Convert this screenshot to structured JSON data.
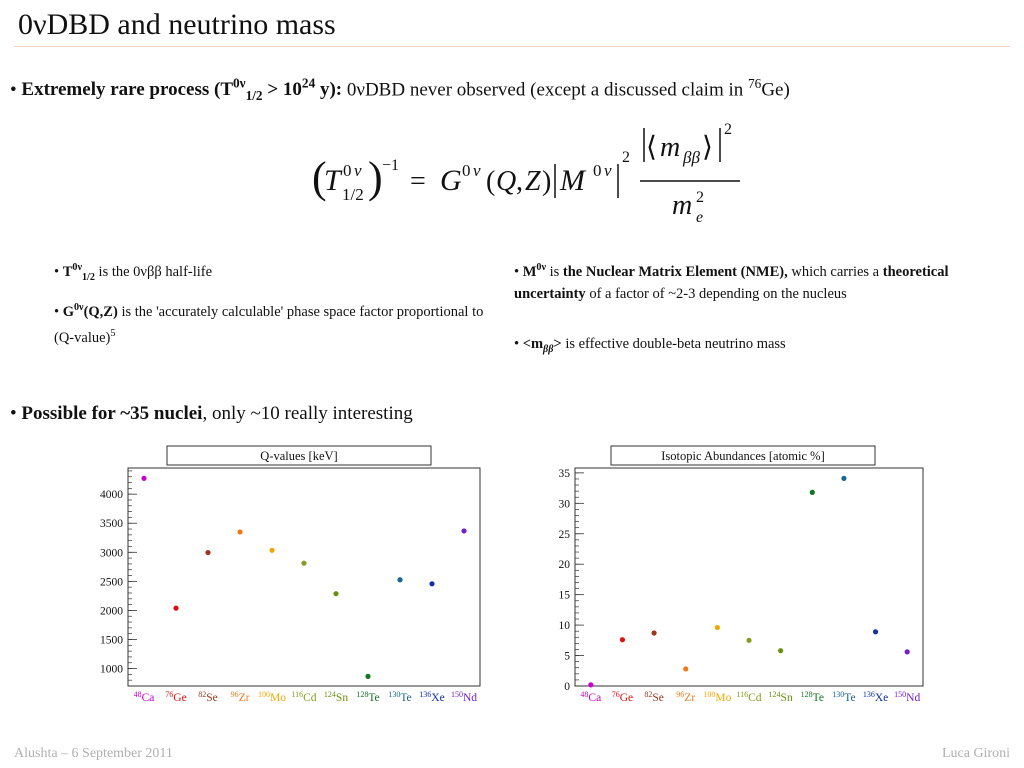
{
  "slide": {
    "title": "0νDBD and neutrino mass",
    "bullet1": {
      "lead": "Extremely rare process (T",
      "lead_sup": "0ν",
      "lead_sub": "1/2",
      "lead_mid": " > 10",
      "lead_exp": "24",
      "lead_end": " y):",
      "text": " 0νDBD never observed (except a discussed claim in ",
      "iso_sup": "76",
      "iso": "Ge)"
    },
    "notes_left": [
      {
        "bold": "T",
        "sup": "0ν",
        "sub": "1/2",
        "text": " is the 0νββ half-life"
      },
      {
        "bold": "G",
        "sup": "0ν",
        "bold2": "(Q,Z)",
        "text": " is the 'accurately calculable' phase space factor proportional to (Q-value)",
        "tail_sup": "5"
      }
    ],
    "notes_right": [
      {
        "bold": "M",
        "sup": "0ν",
        "text1": " is ",
        "bold2": "the Nuclear Matrix Element (NME),",
        "text2": " which carries a ",
        "bold3": "theoretical uncertainty",
        "text3": " of a factor of ~2-3 depending on the nucleus"
      },
      {
        "bold": "<m",
        "sub": "ββ",
        "bold_end": ">",
        "text": " is effective double-beta neutrino mass"
      }
    ],
    "bullet2": {
      "bold": "Possible for ~35 nuclei",
      "text": ", only ~10 really interesting"
    },
    "footer_left": "Alushta – 6 September 2011",
    "footer_right": "Luca Gironi"
  },
  "chart_data": [
    {
      "type": "scatter",
      "title": "Q-values [keV]",
      "xlabel": "",
      "ylabel": "",
      "ylim": [
        700,
        4450
      ],
      "yticks": [
        1000,
        1500,
        2000,
        2500,
        3000,
        3500,
        4000
      ],
      "categories": [
        {
          "mass": "48",
          "el": "Ca",
          "color": "#cc00cc"
        },
        {
          "mass": "76",
          "el": "Ge",
          "color": "#e01010"
        },
        {
          "mass": "82",
          "el": "Se",
          "color": "#a0361a"
        },
        {
          "mass": "96",
          "el": "Zr",
          "color": "#f07818"
        },
        {
          "mass": "100",
          "el": "Mo",
          "color": "#f0a800"
        },
        {
          "mass": "116",
          "el": "Cd",
          "color": "#8a9a20"
        },
        {
          "mass": "124",
          "el": "Sn",
          "color": "#689010"
        },
        {
          "mass": "128",
          "el": "Te",
          "color": "#107820"
        },
        {
          "mass": "130",
          "el": "Te",
          "color": "#186890"
        },
        {
          "mass": "136",
          "el": "Xe",
          "color": "#1030b0"
        },
        {
          "mass": "150",
          "el": "Nd",
          "color": "#7020d0"
        }
      ],
      "values": [
        4272,
        2039,
        2995,
        3350,
        3034,
        2813,
        2288,
        866,
        2528,
        2458,
        3367
      ]
    },
    {
      "type": "scatter",
      "title": "Isotopic Abundances [atomic %]",
      "xlabel": "",
      "ylabel": "",
      "ylim": [
        0,
        35.8
      ],
      "yticks": [
        0,
        5,
        10,
        15,
        20,
        25,
        30,
        35
      ],
      "categories": [
        {
          "mass": "48",
          "el": "Ca",
          "color": "#cc00cc"
        },
        {
          "mass": "76",
          "el": "Ge",
          "color": "#e01010"
        },
        {
          "mass": "82",
          "el": "Se",
          "color": "#a0361a"
        },
        {
          "mass": "96",
          "el": "Zr",
          "color": "#f07818"
        },
        {
          "mass": "100",
          "el": "Mo",
          "color": "#f0a800"
        },
        {
          "mass": "116",
          "el": "Cd",
          "color": "#8a9a20"
        },
        {
          "mass": "124",
          "el": "Sn",
          "color": "#689010"
        },
        {
          "mass": "128",
          "el": "Te",
          "color": "#107820"
        },
        {
          "mass": "130",
          "el": "Te",
          "color": "#186890"
        },
        {
          "mass": "136",
          "el": "Xe",
          "color": "#1030b0"
        },
        {
          "mass": "150",
          "el": "Nd",
          "color": "#7020d0"
        }
      ],
      "values": [
        0.19,
        7.6,
        8.7,
        2.8,
        9.6,
        7.5,
        5.8,
        31.8,
        34.1,
        8.9,
        5.6
      ]
    }
  ]
}
